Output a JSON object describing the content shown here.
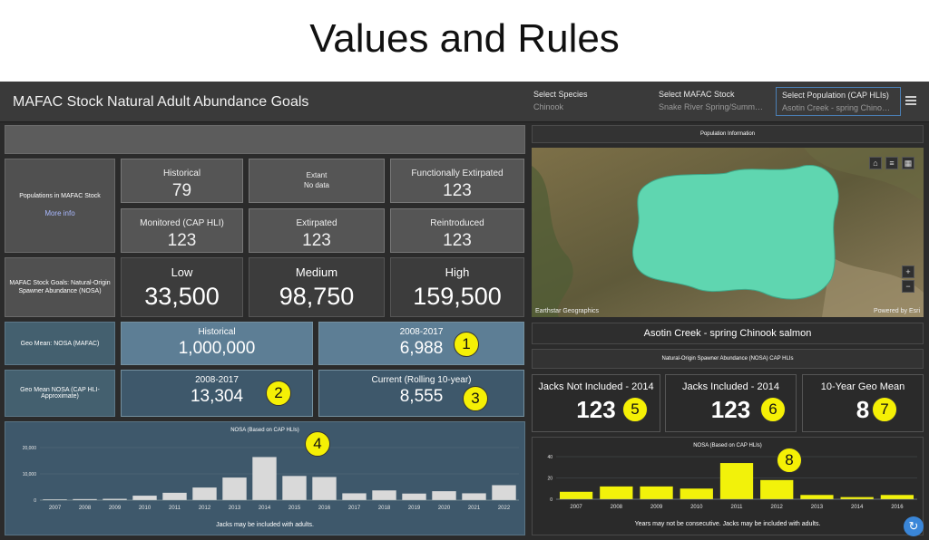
{
  "slide_title": "Values and Rules",
  "header": {
    "title": "MAFAC Stock Natural Adult Abundance Goals",
    "selectors": [
      {
        "label": "Select Species",
        "value": "Chinook"
      },
      {
        "label": "Select MAFAC Stock",
        "value": "Snake River Spring/Summer C..."
      },
      {
        "label": "Select Population (CAP HLIs)",
        "value": "Asotin Creek - spring Chinook..."
      }
    ]
  },
  "populations": {
    "label": "Populations in MAFAC Stock",
    "more_info": "More info",
    "tiles": [
      {
        "title": "Historical",
        "value": "79"
      },
      {
        "title": "Extant",
        "value": "No data"
      },
      {
        "title": "Functionally Extirpated",
        "value": "123"
      },
      {
        "title": "Monitored (CAP HLI)",
        "value": "123"
      },
      {
        "title": "Extirpated",
        "value": "123"
      },
      {
        "title": "Reintroduced",
        "value": "123"
      }
    ]
  },
  "goals": {
    "label": "MAFAC Stock Goals: Natural-Origin Spawner Abundance (NOSA)",
    "tiles": [
      {
        "title": "Low",
        "value": "33,500"
      },
      {
        "title": "Medium",
        "value": "98,750"
      },
      {
        "title": "High",
        "value": "159,500"
      }
    ]
  },
  "geo_mafac": {
    "label": "Geo Mean: NOSA (MAFAC)",
    "tiles": [
      {
        "title": "Historical",
        "value": "1,000,000"
      },
      {
        "title": "2008-2017",
        "value": "6,988"
      }
    ]
  },
  "geo_cap": {
    "label": "Geo Mean NOSA (CAP HLI-Approximate)",
    "tiles": [
      {
        "title": "2008-2017",
        "value": "13,304"
      },
      {
        "title": "Current (Rolling 10-year)",
        "value": "8,555"
      }
    ]
  },
  "right": {
    "population_info": "Population Information",
    "population_name": "Asotin Creek - spring Chinook salmon",
    "nosa_hlis": "Natural-Origin Spawner Abundance (NOSA) CAP HLIs",
    "map_attribution": "Earthstar Geographics",
    "map_powered": "Powered by Esri",
    "jacks": [
      {
        "title": "Jacks Not Included - 2014",
        "value": "123"
      },
      {
        "title": "Jacks Included - 2014",
        "value": "123"
      },
      {
        "title": "10-Year Geo Mean",
        "value": "8"
      }
    ]
  },
  "callouts": [
    "1",
    "2",
    "3",
    "4",
    "5",
    "6",
    "7",
    "8"
  ],
  "colors": {
    "left_bar": "#d9d9d9",
    "right_bar": "#f2f20a",
    "watershed": "#5fd6b0"
  },
  "chart_data": [
    {
      "type": "bar",
      "title": "NOSA (Based on CAP HLIs)",
      "footnote": "Jacks may be included with adults.",
      "categories": [
        "2007",
        "2008",
        "2009",
        "2010",
        "2011",
        "2012",
        "2013",
        "2014",
        "2015",
        "2016",
        "2017",
        "2018",
        "2019",
        "2020",
        "2021",
        "2022"
      ],
      "values": [
        300,
        400,
        500,
        1700,
        2800,
        4800,
        8600,
        16400,
        9200,
        8800,
        2600,
        3700,
        2500,
        3400,
        2600,
        5700
      ],
      "ylim": [
        0,
        20000
      ],
      "yticks": [
        {
          "v": 0,
          "label": "0"
        },
        {
          "v": 10000,
          "label": "10,000"
        },
        {
          "v": 20000,
          "label": "20,000"
        }
      ]
    },
    {
      "type": "bar",
      "title": "NOSA (Based on CAP HLIs)",
      "footnote": "Years may not be consecutive. Jacks may be included with adults.",
      "categories": [
        "2007",
        "2008",
        "2009",
        "2010",
        "2011",
        "2012",
        "2013",
        "2014",
        "2016"
      ],
      "values": [
        7,
        12,
        12,
        10,
        34,
        18,
        4,
        2,
        4
      ],
      "ylim": [
        0,
        40
      ],
      "yticks": [
        {
          "v": 0,
          "label": "0"
        },
        {
          "v": 20,
          "label": "20"
        },
        {
          "v": 40,
          "label": "40"
        }
      ]
    }
  ]
}
